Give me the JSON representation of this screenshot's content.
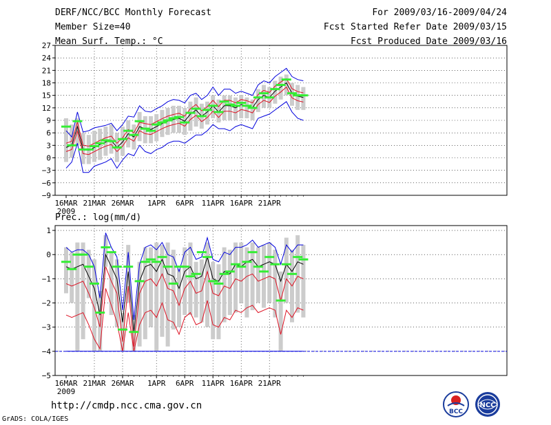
{
  "header": {
    "title": "DERF/NCC/BCC Monthly Forecast",
    "member_size": "Member Size=40",
    "period": "For 2009/03/16-2009/04/24",
    "started": "Fcst Started Refer Date 2009/03/15",
    "produced": "Fcst Produced Date 2009/03/16"
  },
  "footer": {
    "url": "http://cmdp.ncc.cma.gov.cn",
    "grads": "GrADS: COLA/IGES",
    "logo_bcc": "BCC",
    "logo_ncc": "NCC"
  },
  "colors": {
    "ensemble_mean": "#000000",
    "sigma_band": "#dd1122",
    "minmax_envelope": "#0000dd",
    "member_spread": "#cccccc",
    "green_mark": "#33ee33"
  },
  "chart_data": [
    {
      "type": "line",
      "title": "Mean Surf. Temp.: °C",
      "x_days": 40,
      "x_ticks": [
        {
          "day": 0,
          "label": "16MAR"
        },
        {
          "day": 5,
          "label": "21MAR"
        },
        {
          "day": 10,
          "label": "26MAR"
        },
        {
          "day": 16,
          "label": "1APR"
        },
        {
          "day": 21,
          "label": "6APR"
        },
        {
          "day": 26,
          "label": "11APR"
        },
        {
          "day": 31,
          "label": "16APR"
        },
        {
          "day": 36,
          "label": "21APR"
        }
      ],
      "year_label": "2009",
      "ylim": [
        -9,
        27
      ],
      "yticks": [
        -9,
        -6,
        -3,
        0,
        3,
        6,
        9,
        12,
        15,
        18,
        21,
        24,
        27
      ],
      "ytick_labels": [
        "−9",
        "−6",
        "−3",
        "0",
        "3",
        "6",
        "9",
        "12",
        "15",
        "18",
        "21",
        "24",
        "27"
      ],
      "gridlines": "dotted",
      "series": [
        {
          "name": "mean",
          "values": [
            2.5,
            3.0,
            7.5,
            2.0,
            1.8,
            2.5,
            3.2,
            3.8,
            4.2,
            2.5,
            3.8,
            5.8,
            5.0,
            7.5,
            7.0,
            6.8,
            7.5,
            8.2,
            8.8,
            9.2,
            9.5,
            8.8,
            10.5,
            11.5,
            10.0,
            11.0,
            12.5,
            11.0,
            12.5,
            12.5,
            12.0,
            12.8,
            12.5,
            12.0,
            14.0,
            15.0,
            14.5,
            16.0,
            17.0,
            18.0,
            15.5,
            14.8,
            14.5
          ]
        },
        {
          "name": "upper_sigma",
          "values": [
            3.5,
            4.0,
            8.6,
            3.0,
            2.8,
            3.5,
            4.2,
            4.8,
            5.2,
            3.5,
            4.8,
            6.8,
            6.0,
            8.5,
            8.2,
            8.0,
            8.7,
            9.4,
            10.0,
            10.4,
            10.7,
            10.0,
            11.8,
            12.8,
            11.3,
            12.3,
            13.8,
            12.3,
            13.8,
            13.8,
            13.2,
            14.0,
            13.7,
            13.2,
            15.2,
            16.2,
            15.7,
            17.2,
            18.2,
            19.0,
            16.6,
            15.9,
            15.6
          ]
        },
        {
          "name": "lower_sigma",
          "values": [
            1.5,
            2.0,
            6.4,
            1.0,
            0.8,
            1.5,
            2.2,
            2.8,
            3.2,
            1.5,
            2.8,
            4.8,
            4.0,
            6.5,
            5.8,
            5.6,
            6.3,
            7.0,
            7.6,
            8.0,
            8.3,
            7.6,
            9.2,
            10.2,
            8.7,
            9.7,
            11.2,
            9.7,
            11.2,
            11.2,
            10.8,
            11.6,
            11.3,
            10.8,
            12.8,
            13.8,
            13.3,
            14.8,
            15.8,
            17.0,
            14.4,
            13.7,
            13.4
          ]
        },
        {
          "name": "max",
          "values": [
            6.5,
            5.0,
            11.0,
            6.2,
            6.5,
            7.2,
            7.5,
            7.8,
            8.3,
            6.5,
            8.0,
            10.0,
            9.8,
            12.5,
            11.2,
            11.0,
            11.8,
            12.5,
            13.5,
            14.0,
            13.8,
            13.2,
            15.0,
            15.5,
            14.0,
            15.0,
            17.0,
            15.0,
            16.5,
            16.5,
            15.5,
            16.0,
            15.5,
            15.0,
            17.5,
            18.5,
            18.0,
            19.5,
            20.5,
            21.5,
            19.5,
            18.8,
            18.5
          ]
        },
        {
          "name": "min",
          "values": [
            -2.5,
            -1.0,
            3.5,
            -3.5,
            -3.5,
            -2.0,
            -1.5,
            -1.0,
            -0.2,
            -2.5,
            -0.5,
            1.0,
            0.5,
            3.0,
            1.5,
            1.0,
            2.0,
            2.5,
            3.5,
            4.0,
            4.0,
            3.5,
            4.5,
            5.5,
            5.5,
            6.5,
            8.0,
            7.0,
            7.0,
            6.5,
            7.5,
            8.0,
            7.5,
            7.0,
            9.5,
            10.0,
            10.5,
            11.5,
            12.5,
            13.5,
            11.0,
            9.5,
            9.0
          ]
        }
      ],
      "spread_bars": [
        [
          -1.0,
          9.5
        ],
        [
          0.0,
          8.0
        ],
        [
          3.0,
          9.5
        ],
        [
          -1.5,
          6.0
        ],
        [
          -1.5,
          5.5
        ],
        [
          -1.0,
          6.5
        ],
        [
          -0.5,
          7.0
        ],
        [
          0.5,
          7.5
        ],
        [
          1.0,
          8.0
        ],
        [
          -1.0,
          6.0
        ],
        [
          0.5,
          7.5
        ],
        [
          2.5,
          9.0
        ],
        [
          2.0,
          8.0
        ],
        [
          4.0,
          11.0
        ],
        [
          3.5,
          10.0
        ],
        [
          3.5,
          10.0
        ],
        [
          4.0,
          10.5
        ],
        [
          5.0,
          11.5
        ],
        [
          5.5,
          12.0
        ],
        [
          6.0,
          12.5
        ],
        [
          6.0,
          12.5
        ],
        [
          5.5,
          12.0
        ],
        [
          6.5,
          13.5
        ],
        [
          7.5,
          14.5
        ],
        [
          7.0,
          13.0
        ],
        [
          8.0,
          13.5
        ],
        [
          9.5,
          15.0
        ],
        [
          8.5,
          14.0
        ],
        [
          9.0,
          15.0
        ],
        [
          9.0,
          15.0
        ],
        [
          9.0,
          14.5
        ],
        [
          9.5,
          15.0
        ],
        [
          9.5,
          14.5
        ],
        [
          9.0,
          14.0
        ],
        [
          11.0,
          16.5
        ],
        [
          12.0,
          17.5
        ],
        [
          12.0,
          17.0
        ],
        [
          13.0,
          18.5
        ],
        [
          14.0,
          19.5
        ],
        [
          15.0,
          20.0
        ],
        [
          12.5,
          18.0
        ],
        [
          11.5,
          17.5
        ],
        [
          11.5,
          17.0
        ]
      ],
      "green_marks": [
        7.5,
        3.0,
        8.8,
        2.0,
        2.0,
        2.8,
        3.5,
        4.2,
        4.0,
        2.5,
        4.5,
        6.5,
        5.5,
        8.8,
        7.0,
        6.5,
        8.0,
        8.5,
        9.0,
        9.5,
        9.8,
        8.5,
        10.8,
        11.8,
        10.0,
        11.5,
        12.5,
        11.0,
        13.5,
        12.8,
        12.5,
        13.2,
        12.5,
        12.0,
        14.5,
        15.5,
        14.5,
        16.5,
        17.5,
        18.8,
        15.5,
        15.0,
        15.0
      ]
    },
    {
      "type": "line",
      "title": "Prec.: log(mm/d)",
      "x_days": 40,
      "x_ticks": [
        {
          "day": 0,
          "label": "16MAR"
        },
        {
          "day": 5,
          "label": "21MAR"
        },
        {
          "day": 10,
          "label": "26MAR"
        },
        {
          "day": 16,
          "label": "1APR"
        },
        {
          "day": 21,
          "label": "6APR"
        },
        {
          "day": 26,
          "label": "11APR"
        },
        {
          "day": 31,
          "label": "16APR"
        },
        {
          "day": 36,
          "label": "21APR"
        }
      ],
      "year_label": "2009",
      "ylim": [
        -5,
        1.2
      ],
      "yticks": [
        -5,
        -4,
        -3,
        -2,
        -1,
        0,
        1
      ],
      "ytick_labels": [
        "−5",
        "−4",
        "−3",
        "−2",
        "−1",
        "0",
        "1"
      ],
      "reference_line": -4,
      "gridlines": "dotted",
      "series": [
        {
          "name": "mean",
          "values": [
            -0.5,
            -0.6,
            -0.5,
            -0.4,
            -0.9,
            -1.4,
            -2.5,
            0.0,
            -0.5,
            -1.0,
            -2.8,
            -0.7,
            -3.2,
            -1.1,
            -0.5,
            -0.4,
            -0.7,
            -0.2,
            -0.8,
            -0.9,
            -1.4,
            -0.7,
            -0.5,
            -1.0,
            -0.9,
            -0.1,
            -1.0,
            -1.1,
            -0.7,
            -0.8,
            -0.4,
            -0.5,
            -0.3,
            -0.2,
            -0.5,
            -0.4,
            -0.3,
            -0.4,
            -1.1,
            -0.4,
            -0.7,
            -0.3,
            -0.4
          ]
        },
        {
          "name": "upper_sigma",
          "values": [
            -1.2,
            -1.3,
            -1.2,
            -1.1,
            -1.6,
            -2.2,
            -3.0,
            -0.5,
            -1.1,
            -1.6,
            -3.6,
            -1.3,
            -3.8,
            -1.6,
            -1.1,
            -1.0,
            -1.3,
            -0.8,
            -1.4,
            -1.5,
            -2.1,
            -1.4,
            -1.1,
            -1.6,
            -1.5,
            -0.7,
            -1.6,
            -1.7,
            -1.3,
            -1.4,
            -1.0,
            -1.1,
            -0.9,
            -0.8,
            -1.1,
            -1.0,
            -0.9,
            -1.0,
            -1.9,
            -1.0,
            -1.3,
            -0.9,
            -1.0
          ]
        },
        {
          "name": "lower_sigma",
          "values": [
            -2.5,
            -2.6,
            -2.5,
            -2.4,
            -2.9,
            -3.5,
            -3.9,
            -1.4,
            -2.1,
            -2.8,
            -4.0,
            -2.4,
            -4.0,
            -2.9,
            -2.4,
            -2.3,
            -2.6,
            -2.0,
            -2.7,
            -2.8,
            -3.3,
            -2.6,
            -2.4,
            -2.9,
            -2.8,
            -1.9,
            -2.9,
            -3.0,
            -2.6,
            -2.7,
            -2.3,
            -2.4,
            -2.2,
            -2.1,
            -2.4,
            -2.3,
            -2.2,
            -2.3,
            -3.3,
            -2.3,
            -2.6,
            -2.2,
            -2.3
          ]
        },
        {
          "name": "max",
          "values": [
            0.3,
            0.1,
            0.2,
            0.2,
            0.0,
            -0.5,
            -1.8,
            0.9,
            0.3,
            -0.1,
            -2.3,
            0.1,
            -2.7,
            -0.4,
            0.3,
            0.4,
            0.2,
            0.5,
            0.0,
            -0.1,
            -0.7,
            0.1,
            0.3,
            -0.2,
            -0.1,
            0.7,
            -0.2,
            -0.3,
            0.1,
            0.0,
            0.3,
            0.3,
            0.4,
            0.6,
            0.3,
            0.4,
            0.5,
            0.3,
            -0.4,
            0.4,
            0.1,
            0.4,
            0.4
          ]
        },
        {
          "name": "min",
          "values": [
            -4.0,
            -4.0,
            -4.0,
            -4.0,
            -4.0,
            -4.0,
            -4.0,
            -4.0,
            -4.0,
            -4.0,
            -4.0,
            -4.0,
            -4.0,
            -4.0,
            -4.0,
            -4.0,
            -4.0,
            -4.0,
            -4.0,
            -4.0,
            -4.0,
            -4.0,
            -4.0,
            -4.0,
            -4.0,
            -4.0,
            -4.0,
            -4.0,
            -4.0,
            -4.0,
            -4.0,
            -4.0,
            -4.0,
            -4.0,
            -4.0,
            -4.0,
            -4.0,
            -4.0,
            -4.0,
            -4.0,
            -4.0,
            -4.0,
            -4.0
          ]
        }
      ],
      "spread_bars": [
        [
          -1.6,
          0.3
        ],
        [
          -2.0,
          0.1
        ],
        [
          -4.0,
          0.5
        ],
        [
          -3.5,
          0.5
        ],
        [
          -1.8,
          0.2
        ],
        [
          -4.0,
          -0.2
        ],
        [
          -4.0,
          -1.5
        ],
        [
          -0.5,
          0.8
        ],
        [
          -2.5,
          0.1
        ],
        [
          -3.0,
          -0.2
        ],
        [
          -4.0,
          -2.4
        ],
        [
          -2.0,
          0.4
        ],
        [
          -4.0,
          -2.5
        ],
        [
          -3.8,
          -0.3
        ],
        [
          -3.5,
          0.3
        ],
        [
          -3.0,
          0.3
        ],
        [
          -4.0,
          0.5
        ],
        [
          -3.4,
          0.4
        ],
        [
          -3.8,
          0.5
        ],
        [
          -3.1,
          0.2
        ],
        [
          -3.0,
          -0.6
        ],
        [
          -2.5,
          0.3
        ],
        [
          -2.5,
          0.5
        ],
        [
          -2.6,
          -0.3
        ],
        [
          -2.8,
          -0.2
        ],
        [
          -3.0,
          0.5
        ],
        [
          -3.5,
          -0.3
        ],
        [
          -3.5,
          -0.4
        ],
        [
          -2.8,
          0.3
        ],
        [
          -2.5,
          0.2
        ],
        [
          -2.4,
          0.5
        ],
        [
          -2.0,
          0.5
        ],
        [
          -2.6,
          0.3
        ],
        [
          -2.3,
          0.5
        ],
        [
          -2.0,
          0.3
        ],
        [
          -2.2,
          0.4
        ],
        [
          -2.0,
          0.5
        ],
        [
          -2.6,
          0.2
        ],
        [
          -4.0,
          -0.7
        ],
        [
          -2.0,
          0.7
        ],
        [
          -2.8,
          0.2
        ],
        [
          -2.4,
          0.8
        ],
        [
          -2.6,
          0.4
        ]
      ],
      "green_marks": [
        -0.3,
        -0.6,
        0.0,
        0.0,
        -0.5,
        -1.2,
        -2.4,
        0.3,
        0.1,
        -0.5,
        -3.1,
        -0.5,
        -3.2,
        -1.1,
        -0.3,
        -0.2,
        -0.3,
        -0.1,
        -0.5,
        -1.2,
        -0.5,
        -0.5,
        -0.9,
        -0.8,
        0.1,
        -0.1,
        -1.1,
        -1.2,
        -0.8,
        -0.7,
        -0.4,
        -0.5,
        -0.3,
        0.1,
        -0.5,
        -0.7,
        -0.1,
        -0.4,
        -1.9,
        -0.4,
        -0.8,
        -0.1,
        -0.2
      ]
    }
  ]
}
